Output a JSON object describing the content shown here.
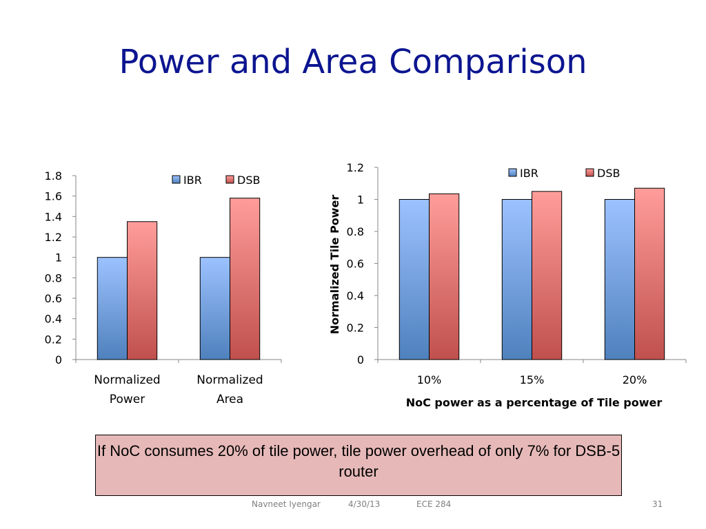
{
  "slide": {
    "title": "Power and Area Comparison",
    "callout": "If NoC consumes 20% of tile power, tile power overhead of only 7% for DSB-5 router",
    "footer": {
      "author": "Navneet Iyengar",
      "date": "4/30/13",
      "course": "ECE 284",
      "page": "31"
    }
  },
  "colors": {
    "IBR": "#4f81bd",
    "DSB": "#c0504d",
    "title": "#0c1590"
  },
  "chart_data": [
    {
      "type": "bar",
      "categories": [
        [
          "Normalized",
          "Power"
        ],
        [
          "Normalized",
          "Area"
        ]
      ],
      "series": [
        {
          "name": "IBR",
          "values": [
            1,
            1
          ]
        },
        {
          "name": "DSB",
          "values": [
            1.35,
            1.58
          ]
        }
      ],
      "ylim": [
        0,
        1.8
      ],
      "yticks": [
        "0",
        "0.2",
        "0.4",
        "0.6",
        "0.8",
        "1",
        "1.2",
        "1.4",
        "1.6",
        "1.8"
      ],
      "xlabel": "",
      "ylabel": "",
      "grid": false,
      "legend": "top-right"
    },
    {
      "type": "bar",
      "categories": [
        [
          "10%"
        ],
        [
          "15%"
        ],
        [
          "20%"
        ]
      ],
      "series": [
        {
          "name": "IBR",
          "values": [
            1,
            1,
            1
          ]
        },
        {
          "name": "DSB",
          "values": [
            1.035,
            1.05,
            1.07
          ]
        }
      ],
      "ylim": [
        0,
        1.2
      ],
      "yticks": [
        "0",
        "0.2",
        "0.4",
        "0.6",
        "0.8",
        "1",
        "1.2"
      ],
      "xlabel": "NoC power as a percentage of Tile power",
      "ylabel": "Normalized Tile Power",
      "grid": false,
      "legend": "top-right"
    }
  ]
}
